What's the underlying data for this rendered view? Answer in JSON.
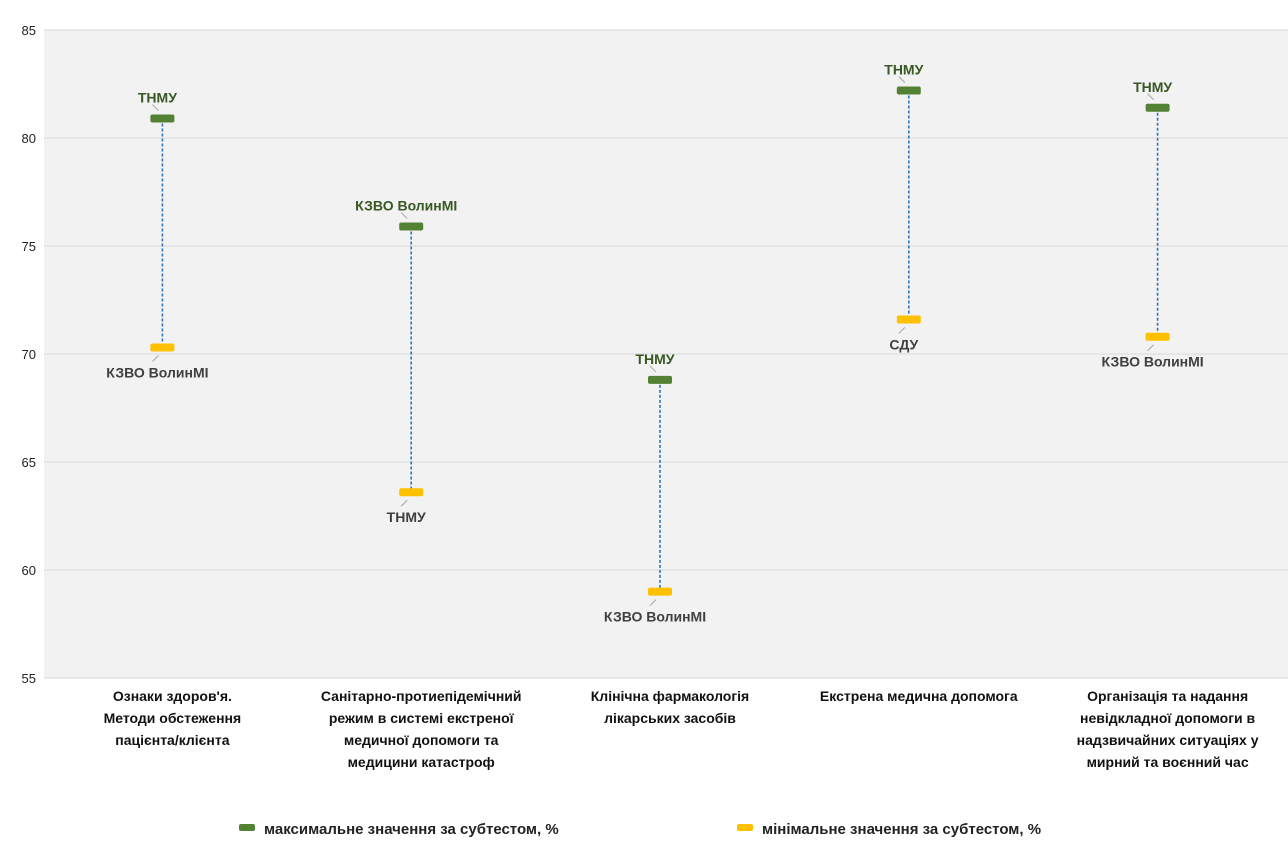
{
  "chart_data": {
    "type": "scatter",
    "categories": [
      "Ознаки здоров'я. Методи обстеження пацієнта/клієнта",
      "Санітарно-протиепідемічний режим в системі екстреної медичної допомоги та медицини катастроф",
      "Клінічна фармакологія лікарських засобів",
      "Екстрена медична допомога",
      "Організація та надання невідкладної допомоги в надзвичайних ситуаціях у мирний та воєнний час"
    ],
    "category_lines": [
      [
        "Ознаки здоров'я.",
        "Методи обстеження",
        "пацієнта/клієнта"
      ],
      [
        "Санітарно-протиепідемічний",
        "режим в системі екстреної",
        "медичної допомоги та",
        "медицини катастроф"
      ],
      [
        "Клінічна фармакологія",
        "лікарських засобів"
      ],
      [
        "Екстрена медична допомога"
      ],
      [
        "Організація та надання",
        "невідкладної допомоги в",
        "надзвичайних ситуаціях у",
        "мирний та воєнний час"
      ]
    ],
    "series": [
      {
        "name": "максимальне значення за субтестом, %",
        "color": "#548235",
        "values": [
          80.9,
          75.9,
          68.8,
          82.2,
          81.4
        ],
        "point_labels": [
          "ТНМУ",
          "КЗВО ВолинМІ",
          "ТНМУ",
          "ТНМУ",
          "ТНМУ"
        ],
        "label_position": "above"
      },
      {
        "name": "мінімальне значення за субтестом, %",
        "color": "#FFC000",
        "values": [
          70.3,
          63.6,
          59.0,
          71.6,
          70.8
        ],
        "point_labels": [
          "КЗВО ВолинМІ",
          "ТНМУ",
          "КЗВО ВолинМІ",
          "СДУ",
          "КЗВО ВолинМІ"
        ],
        "label_position": "below"
      }
    ],
    "connector": {
      "style": "dashed",
      "color": "#2E75B6"
    },
    "ylim": [
      55,
      85
    ],
    "yticks": [
      55,
      60,
      65,
      70,
      75,
      80,
      85
    ],
    "grid": true,
    "legend_position": "bottom",
    "title": "",
    "xlabel": "",
    "ylabel": ""
  }
}
